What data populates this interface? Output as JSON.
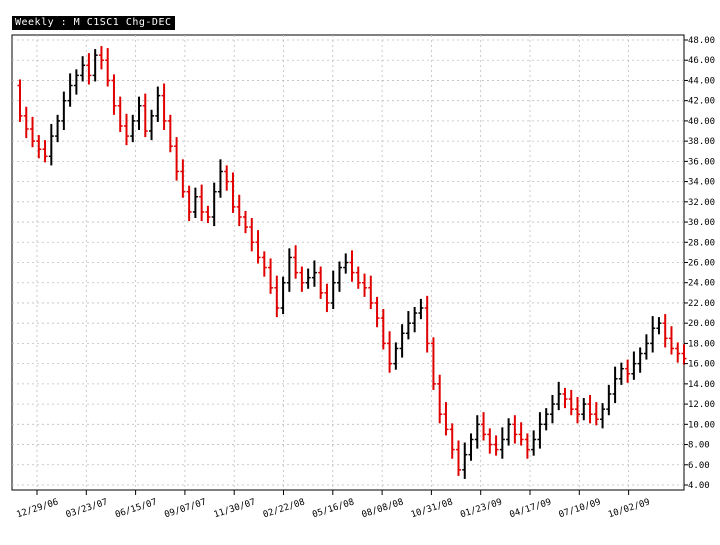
{
  "chart_data": {
    "type": "ohlc",
    "title": "Weekly  : M C1SC1 Chg-DEC",
    "xlabel": "",
    "ylabel": "",
    "ylim": [
      4,
      48
    ],
    "y_ticks": [
      "48.00",
      "46.00",
      "44.00",
      "42.00",
      "40.00",
      "38.00",
      "36.00",
      "34.00",
      "32.00",
      "30.00",
      "28.00",
      "26.00",
      "24.00",
      "22.00",
      "20.00",
      "18.00",
      "16.00",
      "14.00",
      "12.00",
      "10.00",
      "8.00",
      "6.00",
      "4.00"
    ],
    "x_ticks": [
      "12/29/06",
      "03/23/07",
      "06/15/07",
      "09/07/07",
      "11/30/07",
      "02/22/08",
      "05/16/08",
      "08/08/08",
      "10/31/08",
      "01/23/09",
      "04/17/09",
      "07/10/09",
      "10/02/09"
    ],
    "grid": true,
    "up_color": "#000000",
    "down_color": "#e00000",
    "close_series": [
      40.5,
      39.2,
      38,
      37.2,
      36.5,
      38.5,
      40,
      42,
      43.5,
      44.5,
      45.5,
      44.5,
      46.5,
      46,
      44,
      41.5,
      39.5,
      38.5,
      40,
      41.5,
      39,
      40.5,
      42.5,
      40,
      37.5,
      35,
      33,
      31,
      32.5,
      31,
      30.5,
      33,
      35,
      34,
      31.5,
      30.5,
      29.5,
      28,
      26.5,
      25.5,
      23.5,
      21.5,
      24,
      26.5,
      25,
      24,
      24.5,
      25,
      23,
      22,
      24,
      25.5,
      26,
      25,
      24,
      23.5,
      22,
      20.5,
      18,
      16,
      17.5,
      19,
      20,
      21,
      21.5,
      18,
      14,
      11,
      9.5,
      7.5,
      5.5,
      7,
      8.5,
      10,
      9,
      8,
      7.5,
      8.5,
      10,
      9,
      8.5,
      7.5,
      8.5,
      10,
      11,
      12,
      13,
      12.5,
      11.5,
      11,
      12,
      11,
      10.5,
      11.5,
      13,
      14.5,
      15.5,
      15,
      16,
      17,
      18,
      19.5,
      20,
      18.5,
      17.5,
      17,
      16.5
    ]
  }
}
